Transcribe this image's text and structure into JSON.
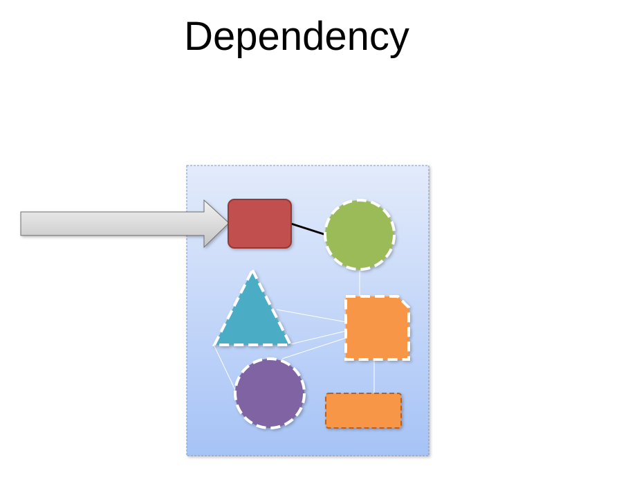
{
  "slide": {
    "title": "Dependency"
  },
  "colors": {
    "container_gradient_top": "#e3ebfb",
    "container_gradient_bottom": "#a6c3f6",
    "container_border": "#7f97c9",
    "arrow_fill_top": "#f2f2f2",
    "arrow_fill_bottom": "#c4c4c4",
    "arrow_stroke": "#6d6d6d",
    "red_box": "#c0504d",
    "red_box_stroke": "#923735",
    "green_circle": "#9bbb59",
    "teal_triangle": "#4bacc6",
    "orange_shape": "#f79646",
    "purple_circle": "#8064a2",
    "dashed_border": "#ffffff",
    "orange_rect_border": "#b0602a",
    "connector_black": "#000000",
    "connector_white": "#ffffff"
  }
}
